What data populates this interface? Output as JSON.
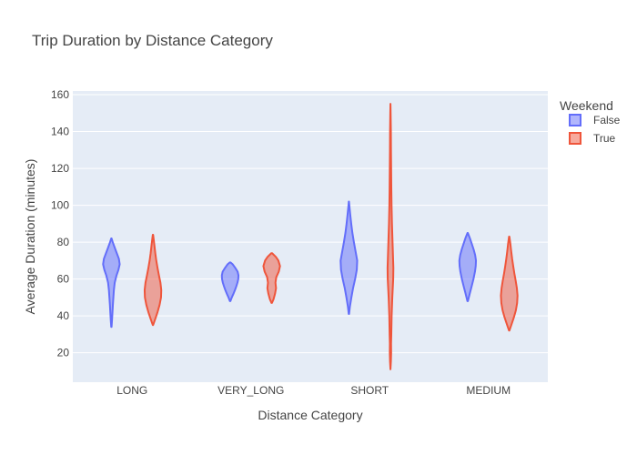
{
  "chart_data": {
    "type": "violin",
    "title": "Trip Duration by Distance Category",
    "xlabel": "Distance Category",
    "ylabel": "Average Duration (minutes)",
    "categories": [
      "LONG",
      "VERY_LONG",
      "SHORT",
      "MEDIUM"
    ],
    "yticks": [
      20,
      40,
      60,
      80,
      100,
      120,
      140,
      160
    ],
    "ylim": [
      4,
      162
    ],
    "grid": true,
    "legend": {
      "title": "Weekend",
      "position": "top-right"
    },
    "series": [
      {
        "name": "False",
        "color": "#636efa",
        "fill": "rgba(99,110,250,0.5)",
        "violins": [
          {
            "category": "LONG",
            "min": 34,
            "max": 82,
            "profile": [
              [
                34,
                0.02
              ],
              [
                38,
                0.08
              ],
              [
                42,
                0.13
              ],
              [
                46,
                0.18
              ],
              [
                50,
                0.24
              ],
              [
                54,
                0.3
              ],
              [
                58,
                0.4
              ],
              [
                62,
                0.62
              ],
              [
                65,
                0.85
              ],
              [
                68,
                1.0
              ],
              [
                71,
                0.9
              ],
              [
                74,
                0.65
              ],
              [
                77,
                0.4
              ],
              [
                80,
                0.16
              ],
              [
                82,
                0.02
              ]
            ]
          },
          {
            "category": "VERY_LONG",
            "min": 48,
            "max": 69,
            "profile": [
              [
                48,
                0.03
              ],
              [
                50,
                0.2
              ],
              [
                52,
                0.4
              ],
              [
                54,
                0.58
              ],
              [
                56,
                0.74
              ],
              [
                58,
                0.88
              ],
              [
                60,
                0.98
              ],
              [
                62,
                1.0
              ],
              [
                64,
                0.9
              ],
              [
                66,
                0.62
              ],
              [
                68,
                0.3
              ],
              [
                69,
                0.04
              ]
            ]
          },
          {
            "category": "SHORT",
            "min": 41,
            "max": 102,
            "profile": [
              [
                41,
                0.02
              ],
              [
                45,
                0.12
              ],
              [
                50,
                0.3
              ],
              [
                55,
                0.5
              ],
              [
                60,
                0.75
              ],
              [
                65,
                0.95
              ],
              [
                70,
                1.0
              ],
              [
                75,
                0.8
              ],
              [
                80,
                0.6
              ],
              [
                85,
                0.42
              ],
              [
                90,
                0.28
              ],
              [
                95,
                0.16
              ],
              [
                100,
                0.05
              ],
              [
                102,
                0.01
              ]
            ]
          },
          {
            "category": "MEDIUM",
            "min": 48,
            "max": 85,
            "profile": [
              [
                48,
                0.03
              ],
              [
                52,
                0.25
              ],
              [
                56,
                0.48
              ],
              [
                60,
                0.7
              ],
              [
                64,
                0.88
              ],
              [
                67,
                0.97
              ],
              [
                70,
                1.0
              ],
              [
                73,
                0.9
              ],
              [
                76,
                0.72
              ],
              [
                79,
                0.5
              ],
              [
                82,
                0.28
              ],
              [
                85,
                0.02
              ]
            ]
          }
        ]
      },
      {
        "name": "True",
        "color": "#ef553b",
        "fill": "rgba(239,85,59,0.5)",
        "violins": [
          {
            "category": "LONG",
            "min": 35,
            "max": 84,
            "profile": [
              [
                35,
                0.02
              ],
              [
                38,
                0.25
              ],
              [
                42,
                0.55
              ],
              [
                46,
                0.8
              ],
              [
                50,
                0.97
              ],
              [
                54,
                1.0
              ],
              [
                58,
                0.9
              ],
              [
                62,
                0.72
              ],
              [
                66,
                0.55
              ],
              [
                70,
                0.4
              ],
              [
                74,
                0.28
              ],
              [
                78,
                0.18
              ],
              [
                81,
                0.1
              ],
              [
                84,
                0.02
              ]
            ]
          },
          {
            "category": "VERY_LONG",
            "min": 47,
            "max": 74,
            "profile": [
              [
                47,
                0.03
              ],
              [
                49,
                0.22
              ],
              [
                52,
                0.4
              ],
              [
                55,
                0.52
              ],
              [
                58,
                0.45
              ],
              [
                61,
                0.55
              ],
              [
                64,
                0.85
              ],
              [
                67,
                1.0
              ],
              [
                70,
                0.8
              ],
              [
                72,
                0.5
              ],
              [
                74,
                0.05
              ]
            ]
          },
          {
            "category": "SHORT",
            "min": 11,
            "max": 155,
            "profile": [
              [
                11,
                0.0
              ],
              [
                15,
                0.05
              ],
              [
                20,
                0.08
              ],
              [
                25,
                0.07
              ],
              [
                30,
                0.1
              ],
              [
                40,
                0.14
              ],
              [
                50,
                0.22
              ],
              [
                60,
                0.33
              ],
              [
                66,
                0.35
              ],
              [
                70,
                0.32
              ],
              [
                80,
                0.25
              ],
              [
                90,
                0.18
              ],
              [
                100,
                0.13
              ],
              [
                110,
                0.1
              ],
              [
                120,
                0.08
              ],
              [
                130,
                0.06
              ],
              [
                140,
                0.05
              ],
              [
                150,
                0.02
              ],
              [
                155,
                0.0
              ]
            ]
          },
          {
            "category": "MEDIUM",
            "min": 32,
            "max": 83,
            "profile": [
              [
                32,
                0.02
              ],
              [
                35,
                0.25
              ],
              [
                39,
                0.55
              ],
              [
                43,
                0.8
              ],
              [
                47,
                0.95
              ],
              [
                51,
                1.0
              ],
              [
                55,
                0.92
              ],
              [
                59,
                0.78
              ],
              [
                63,
                0.62
              ],
              [
                67,
                0.48
              ],
              [
                71,
                0.35
              ],
              [
                75,
                0.24
              ],
              [
                79,
                0.14
              ],
              [
                83,
                0.02
              ]
            ]
          }
        ]
      }
    ]
  }
}
